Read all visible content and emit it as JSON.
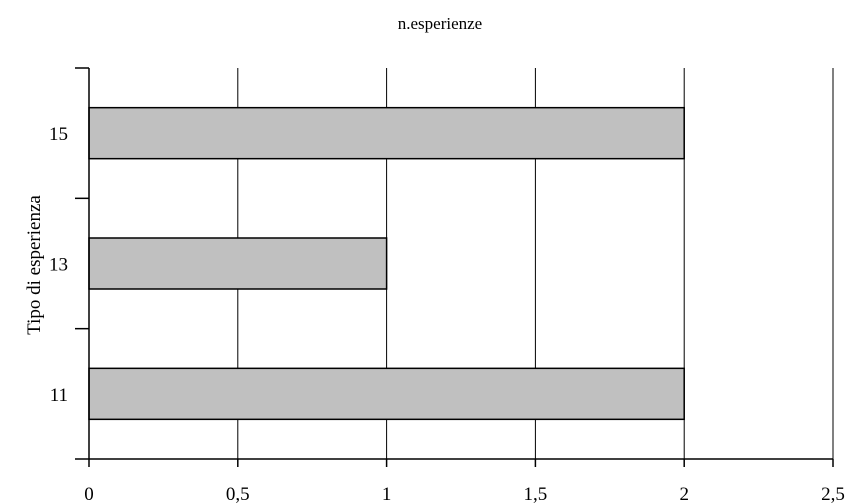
{
  "chart_data": {
    "type": "bar",
    "orientation": "horizontal",
    "title": "n.esperienze",
    "xlabel": "",
    "ylabel": "Tipo di esperienza",
    "categories": [
      "11",
      "13",
      "15"
    ],
    "values": [
      2,
      1,
      2
    ],
    "xlim": [
      0,
      2.5
    ],
    "x_ticks": [
      0,
      0.5,
      1,
      1.5,
      2,
      2.5
    ],
    "x_tick_labels": [
      "0",
      "0,5",
      "1",
      "1,5",
      "2",
      "2,5"
    ],
    "grid": "vertical",
    "legend": "none",
    "colors": {
      "bar_fill": "#c0c0c0",
      "bar_stroke": "#000000",
      "grid": "#000000",
      "axis": "#000000",
      "background": "#ffffff"
    }
  }
}
